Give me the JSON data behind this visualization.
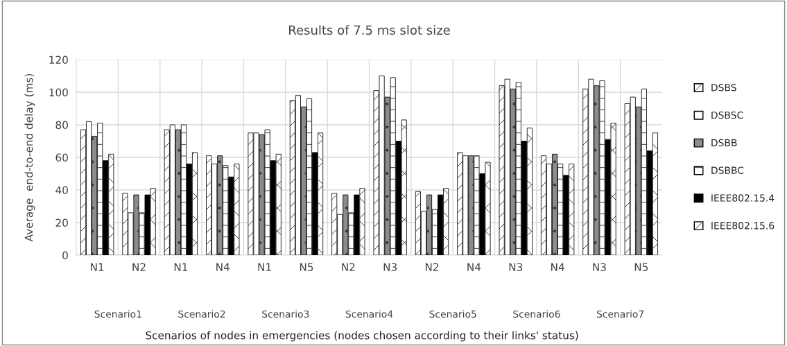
{
  "chart_data": {
    "type": "bar",
    "title": "Results of 7.5 ms slot size",
    "ylabel": "Average  end-to-end delay (ms)",
    "categories": [
      "N1",
      "N2",
      "N1",
      "N4",
      "N1",
      "N5",
      "N2",
      "N3",
      "N2",
      "N4",
      "N3",
      "N4",
      "N3",
      "N5"
    ],
    "annotations": [
      "Scenario1",
      "Scenario2",
      "Scenario3",
      "Scenario4",
      "Scenario5",
      "Scenario6",
      "Scenario7",
      "Scenarios of nodes in emergencies (nodes chosen according to their links' status)"
    ],
    "series": [
      {
        "name": "DSBS",
        "color": "#ffffff",
        "values": [
          77,
          38,
          77,
          61,
          75,
          95,
          38,
          101,
          39,
          63,
          104,
          61,
          102,
          93
        ]
      },
      {
        "name": "DSBSC",
        "color": "#ffffff",
        "values": [
          82,
          26,
          80,
          56,
          75,
          98,
          25,
          110,
          27,
          61,
          108,
          56,
          108,
          97
        ]
      },
      {
        "name": "DSBB",
        "color": "#8c8c8c",
        "values": [
          73,
          37,
          77,
          61,
          74,
          91,
          37,
          97,
          37,
          61,
          102,
          62,
          104,
          91
        ]
      },
      {
        "name": "DSBBC",
        "color": "#ffffff",
        "values": [
          81,
          26,
          80,
          55,
          77,
          96,
          26,
          109,
          28,
          61,
          106,
          56,
          107,
          102
        ]
      },
      {
        "name": "IEEE802.15.4",
        "color": "#000000",
        "values": [
          58,
          37,
          56,
          48,
          58,
          63,
          37,
          70,
          37,
          50,
          70,
          49,
          71,
          64
        ]
      },
      {
        "name": "IEEE802.15.6",
        "color": "#ffffff",
        "values": [
          62,
          41,
          63,
          56,
          62,
          75,
          41,
          83,
          41,
          57,
          78,
          56,
          81,
          75
        ]
      }
    ],
    "ylim": [
      0,
      120
    ],
    "yticks": [
      0,
      20,
      40,
      60,
      80,
      100,
      120
    ],
    "grid": true,
    "legend": "right"
  }
}
